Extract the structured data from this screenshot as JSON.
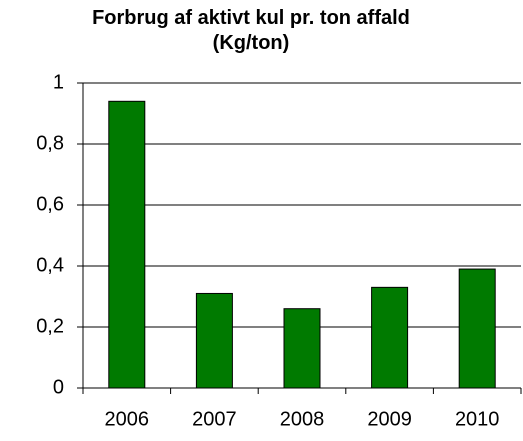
{
  "chart_data": {
    "type": "bar",
    "title": "Forbrug af aktivt kul pr. ton affald (Kg/ton)",
    "categories": [
      "2006",
      "2007",
      "2008",
      "2009",
      "2010"
    ],
    "values": [
      0.94,
      0.31,
      0.26,
      0.33,
      0.39
    ],
    "color": "#007a00",
    "ylim": [
      0,
      1
    ],
    "yticks": [
      0,
      {
        "value": 0.2,
        "label": "0,2"
      },
      {
        "value": 0.4,
        "label": "0,4"
      },
      {
        "value": 0.6,
        "label": "0,6"
      },
      {
        "value": 0.8,
        "label": "0,8"
      },
      1
    ],
    "grid": true
  }
}
